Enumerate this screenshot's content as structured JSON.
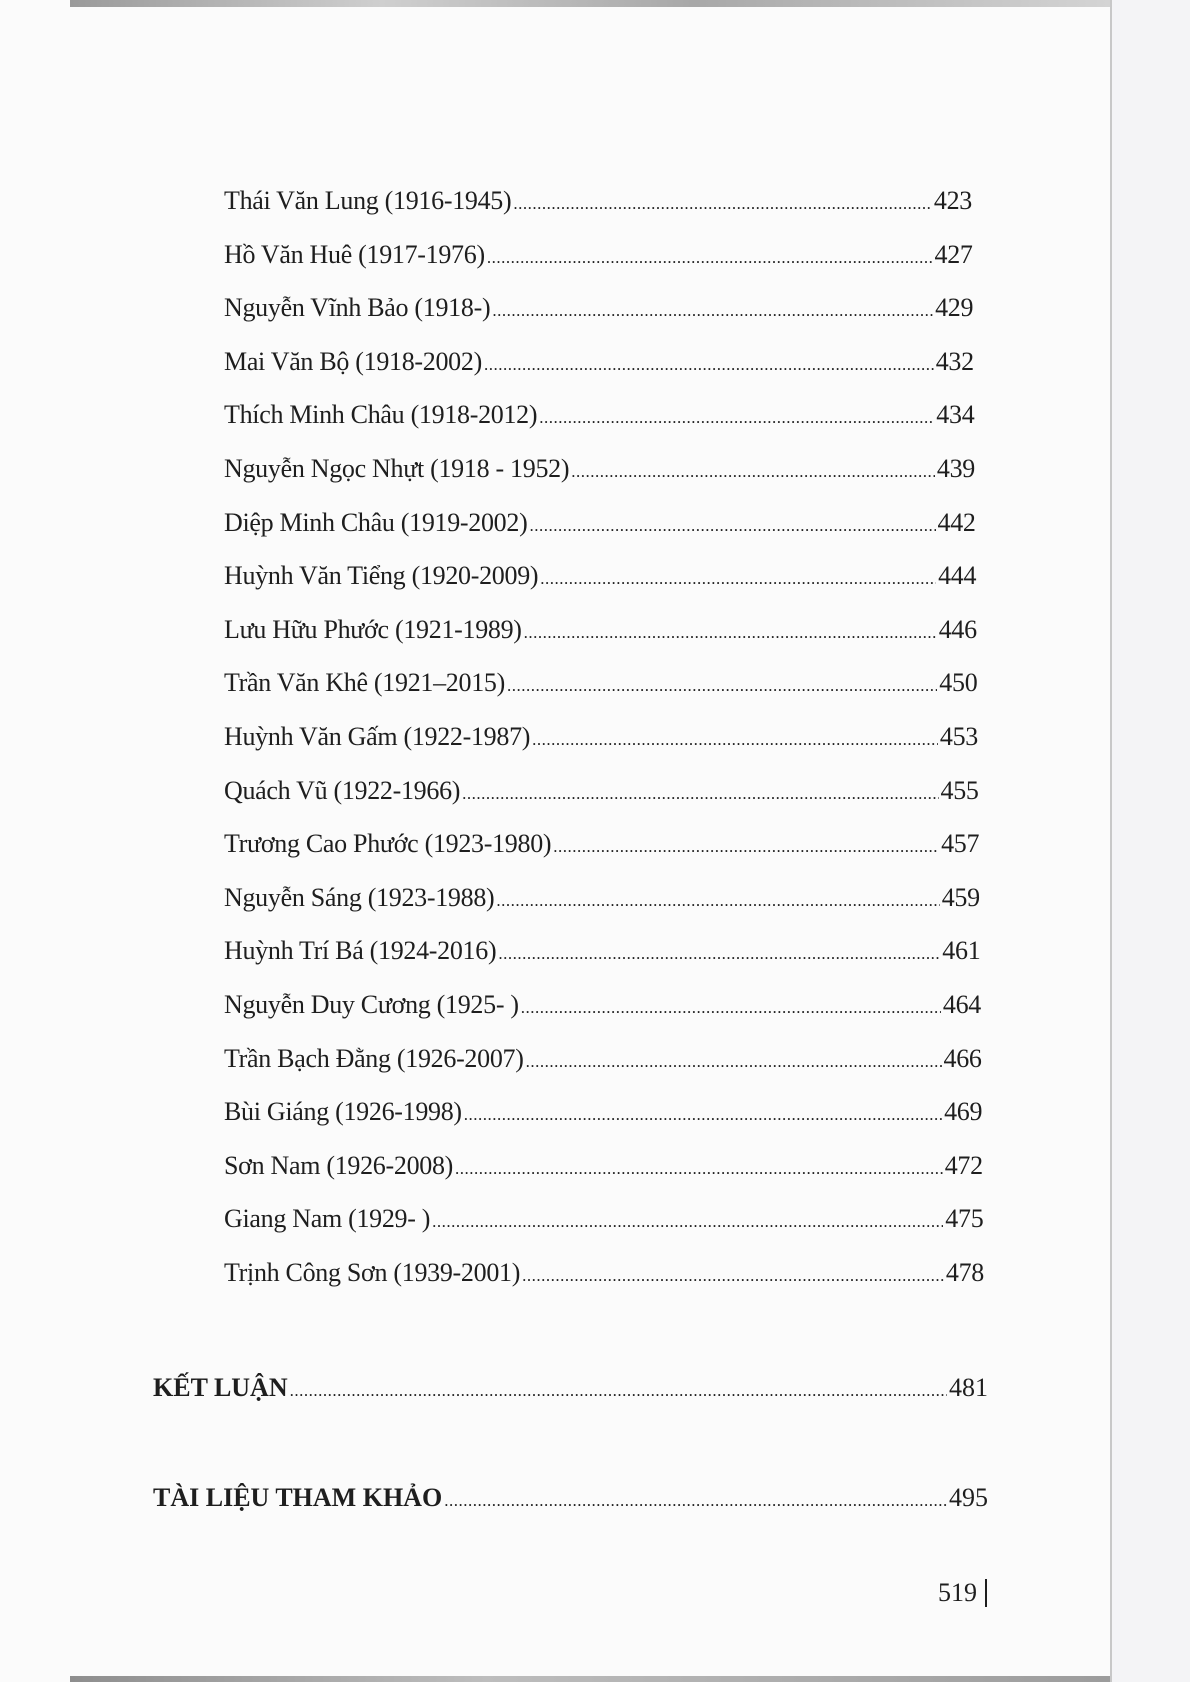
{
  "entries": [
    {
      "name": "Thái Văn Lung (1916-1945)",
      "page": "423"
    },
    {
      "name": "Hồ Văn Huê (1917-1976)",
      "page": "427"
    },
    {
      "name": "Nguyễn Vĩnh Bảo (1918-)",
      "page": "429"
    },
    {
      "name": "Mai Văn Bộ (1918-2002)",
      "page": "432"
    },
    {
      "name": "Thích Minh Châu (1918-2012)",
      "page": "434"
    },
    {
      "name": "Nguyễn Ngọc Nhựt (1918 - 1952)",
      "page": "439"
    },
    {
      "name": "Diệp Minh Châu (1919-2002)",
      "page": "442"
    },
    {
      "name": "Huỳnh Văn Tiểng (1920-2009)",
      "page": "444"
    },
    {
      "name": "Lưu Hữu Phước (1921-1989)",
      "page": "446"
    },
    {
      "name": "Trần Văn Khê (1921–2015)",
      "page": "450"
    },
    {
      "name": "Huỳnh Văn Gấm (1922-1987)",
      "page": "453"
    },
    {
      "name": "Quách Vũ (1922-1966)",
      "page": "455"
    },
    {
      "name": "Trương Cao Phước (1923-1980)",
      "page": "457"
    },
    {
      "name": "Nguyễn Sáng (1923-1988)",
      "page": "459"
    },
    {
      "name": "Huỳnh Trí Bá (1924-2016)",
      "page": "461"
    },
    {
      "name": "Nguyễn Duy Cương (1925- )",
      "page": "464"
    },
    {
      "name": "Trần Bạch Đằng (1926-2007)",
      "page": "466"
    },
    {
      "name": "Bùi Giáng (1926-1998)",
      "page": "469"
    },
    {
      "name": "Sơn Nam (1926-2008)",
      "page": "472"
    },
    {
      "name": "Giang Nam (1929- )",
      "page": "475"
    },
    {
      "name": "Trịnh Công Sơn (1939-2001)",
      "page": "478"
    }
  ],
  "sections": [
    {
      "name": "KẾT LUẬN",
      "page": "481"
    },
    {
      "name": "TÀI LIỆU THAM KHẢO",
      "page": "495"
    }
  ],
  "page_number": "519"
}
